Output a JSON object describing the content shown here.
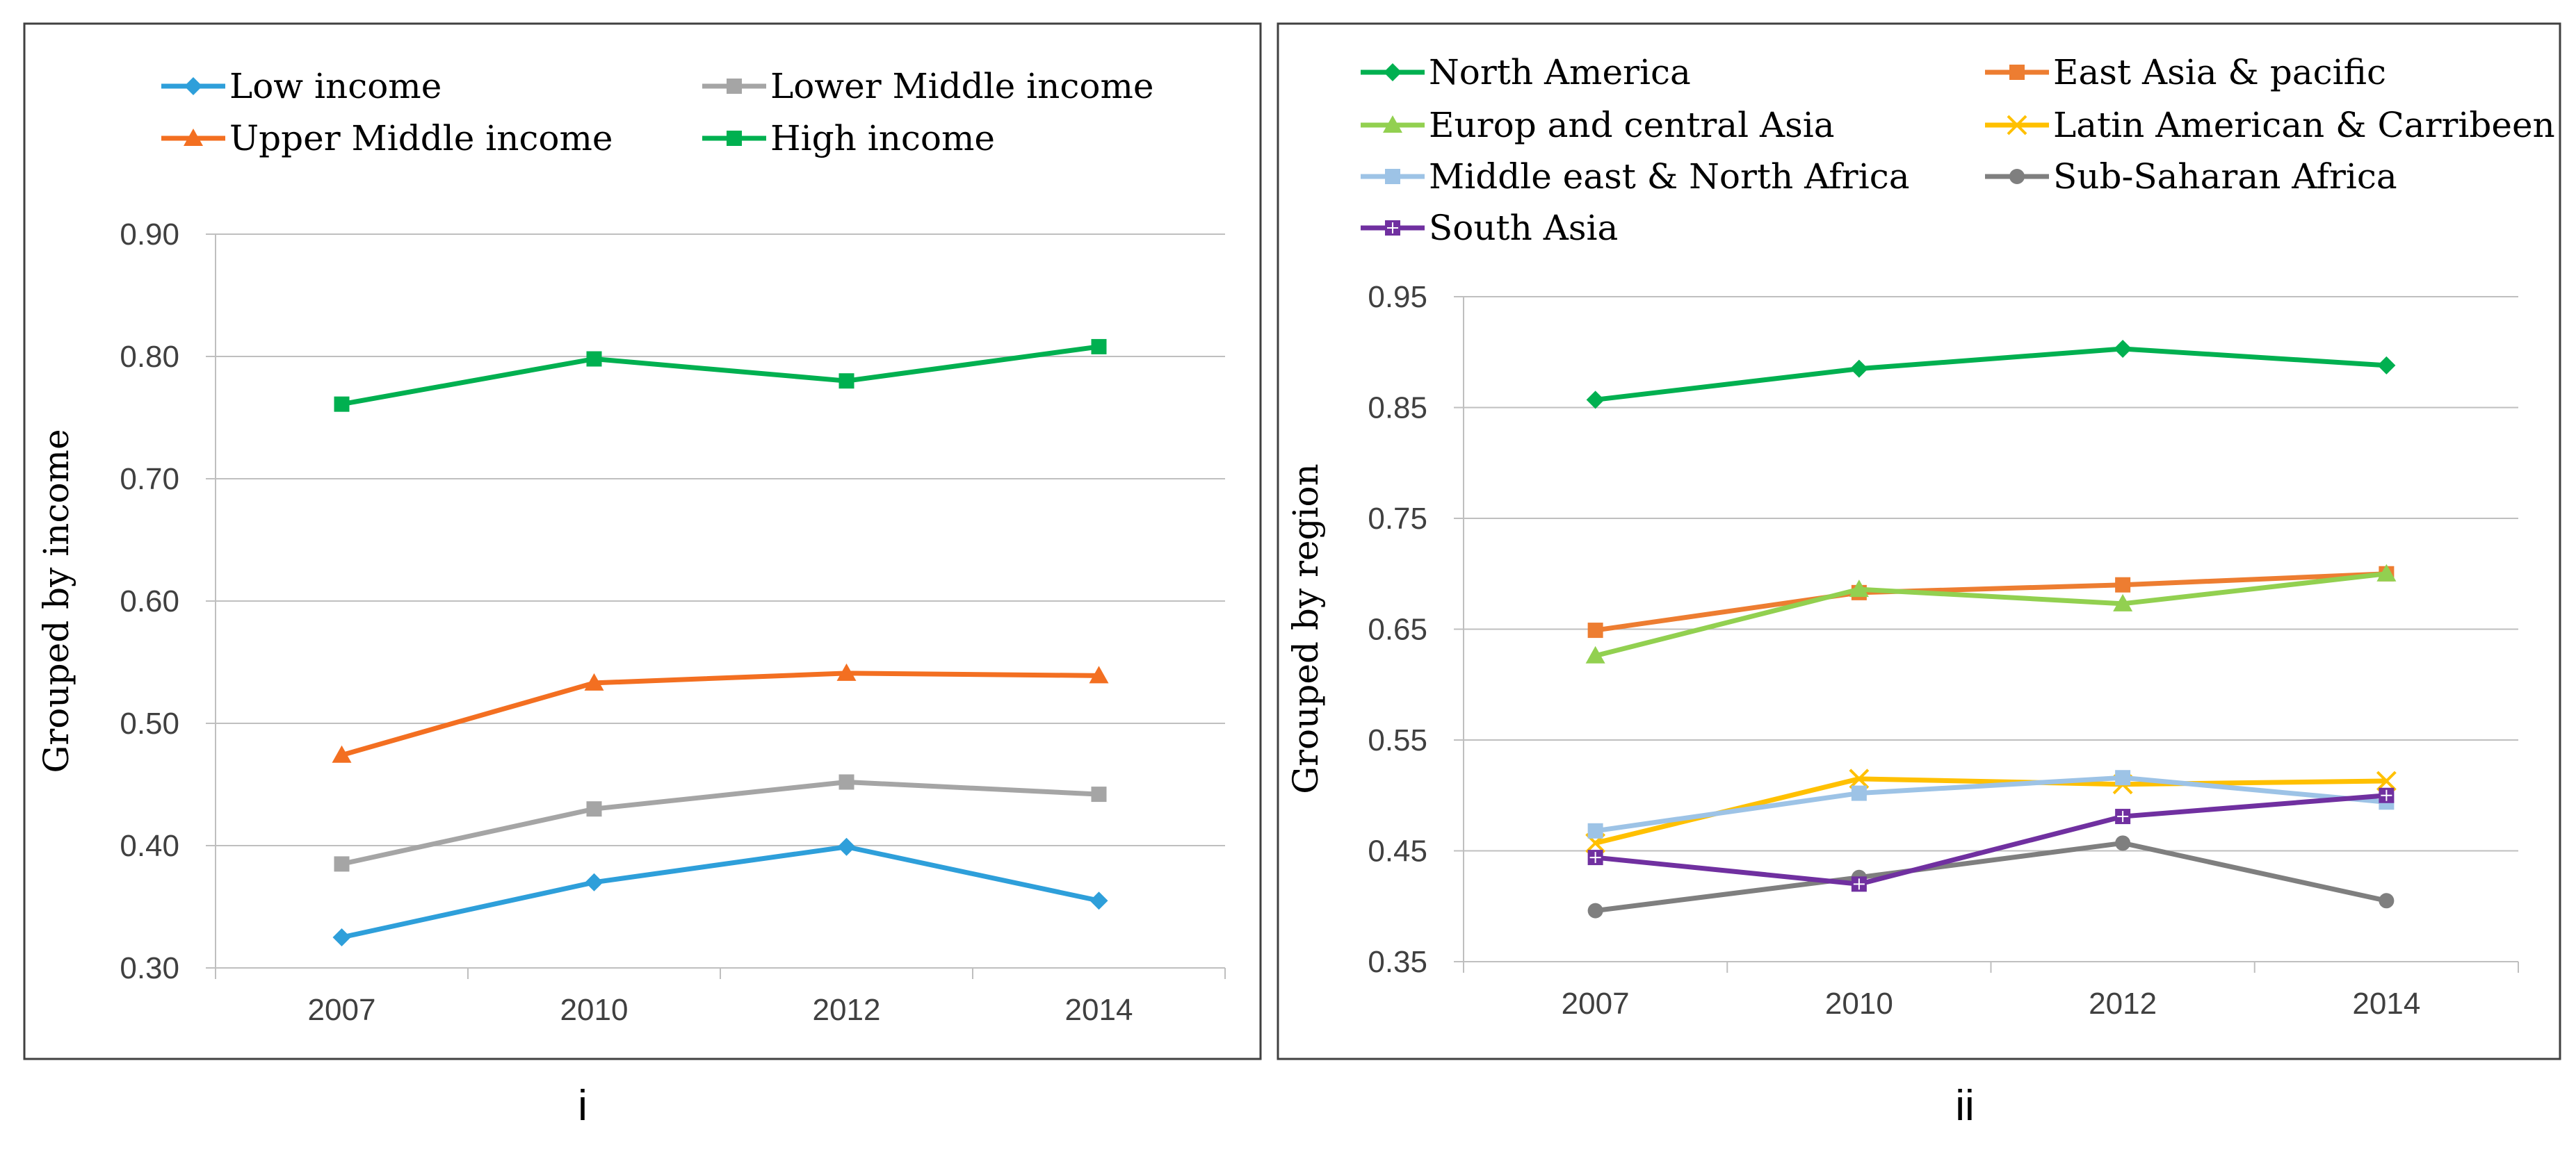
{
  "chart_data": [
    {
      "type": "line",
      "panel_label": "i",
      "ylabel": "Grouped by income",
      "categories": [
        "2007",
        "2010",
        "2012",
        "2014"
      ],
      "y_ticks": [
        "0.30",
        "0.40",
        "0.50",
        "0.60",
        "0.70",
        "0.80",
        "0.90"
      ],
      "ylim": [
        0.3,
        0.9
      ],
      "grid": true,
      "legend_position": "top",
      "series": [
        {
          "name": "Low income",
          "color": "#2E9FDA",
          "marker": "diamond",
          "values": [
            0.325,
            0.37,
            0.399,
            0.355
          ]
        },
        {
          "name": "Lower Middle income",
          "color": "#A5A5A5",
          "marker": "square",
          "values": [
            0.385,
            0.43,
            0.452,
            0.442
          ]
        },
        {
          "name": "Upper Middle  income",
          "color": "#F36F21",
          "marker": "triangle",
          "values": [
            0.474,
            0.533,
            0.541,
            0.539
          ]
        },
        {
          "name": "High  income",
          "color": "#00B050",
          "marker": "square",
          "values": [
            0.761,
            0.798,
            0.78,
            0.808
          ]
        }
      ]
    },
    {
      "type": "line",
      "panel_label": "ii",
      "ylabel": "Grouped by region",
      "categories": [
        "2007",
        "2010",
        "2012",
        "2014"
      ],
      "y_ticks": [
        "0.35",
        "0.45",
        "0.55",
        "0.65",
        "0.75",
        "0.85",
        "0.95"
      ],
      "ylim": [
        0.35,
        0.95
      ],
      "grid": true,
      "legend_position": "top",
      "series": [
        {
          "name": "North America",
          "color": "#00B050",
          "marker": "diamond",
          "values": [
            0.857,
            0.885,
            0.903,
            0.888
          ]
        },
        {
          "name": "East Asia & pacific",
          "color": "#ED7D31",
          "marker": "square",
          "values": [
            0.649,
            0.683,
            0.69,
            0.7
          ]
        },
        {
          "name": "Europ and central Asia",
          "color": "#92D050",
          "marker": "triangle",
          "values": [
            0.626,
            0.686,
            0.673,
            0.7
          ]
        },
        {
          "name": "Latin American & Carribeen",
          "color": "#FFC000",
          "marker": "x",
          "values": [
            0.457,
            0.515,
            0.51,
            0.513
          ]
        },
        {
          "name": "Middle  east & North Africa",
          "color": "#9DC3E6",
          "marker": "square",
          "values": [
            0.468,
            0.502,
            0.516,
            0.494
          ]
        },
        {
          "name": "Sub-Saharan Africa",
          "color": "#7F7F7F",
          "marker": "circle",
          "values": [
            0.396,
            0.426,
            0.457,
            0.405
          ]
        },
        {
          "name": "South Asia",
          "color": "#7030A0",
          "marker": "square-plus",
          "values": [
            0.444,
            0.42,
            0.481,
            0.5
          ]
        }
      ]
    }
  ]
}
